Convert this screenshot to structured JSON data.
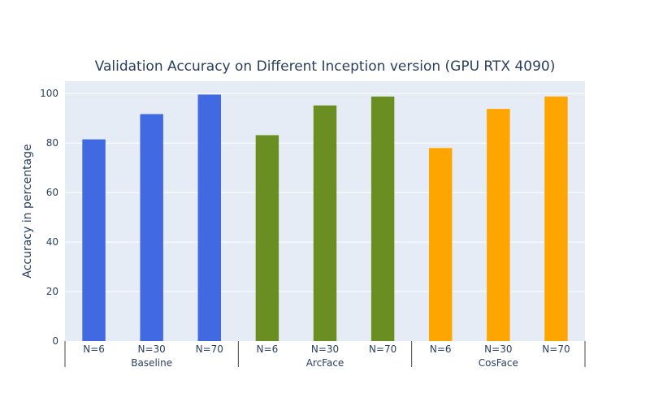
{
  "chart_data": {
    "type": "bar",
    "title": "Validation Accuracy on Different Inception version (GPU RTX 4090)",
    "xlabel": "",
    "ylabel": "Accuracy in percentage",
    "ylim": [
      0,
      105
    ],
    "yticks": [
      0,
      20,
      40,
      60,
      80,
      100
    ],
    "grid": true,
    "legend": "none",
    "groups": [
      {
        "name": "Baseline",
        "color": "#4169e1",
        "categories": [
          "N=6",
          "N=30",
          "N=70"
        ],
        "values": [
          81.5,
          91.7,
          99.6
        ]
      },
      {
        "name": "ArcFace",
        "color": "#6b8e23",
        "categories": [
          "N=6",
          "N=30",
          "N=70"
        ],
        "values": [
          83.2,
          95.2,
          98.8
        ]
      },
      {
        "name": "CosFace",
        "color": "#ffa500",
        "categories": [
          "N=6",
          "N=30",
          "N=70"
        ],
        "values": [
          78.0,
          93.8,
          98.8
        ]
      }
    ]
  }
}
